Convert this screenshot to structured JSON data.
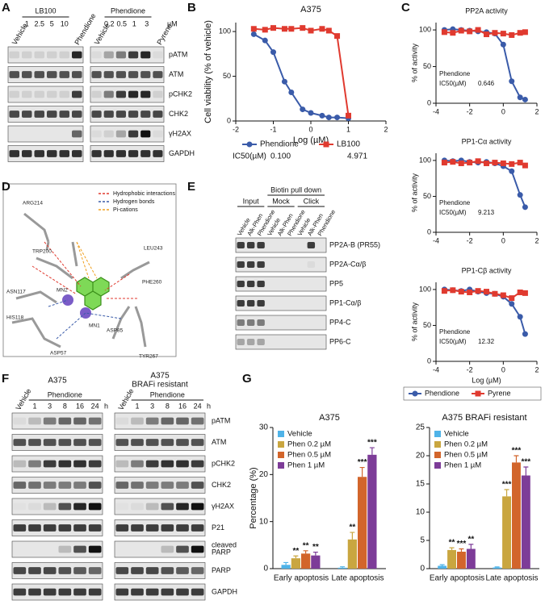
{
  "panel_labels": [
    "A",
    "B",
    "C",
    "D",
    "E",
    "F",
    "G"
  ],
  "panel_a": {
    "left_first": "Vehicle",
    "left_group": "LB100",
    "left_doses": [
      1,
      2.5,
      5,
      10
    ],
    "left_last": "Phendione",
    "right_first": "Vehicle",
    "right_group": "Phendione",
    "right_doses": [
      0.2,
      0.5,
      1,
      3
    ],
    "right_last": "Pyrene",
    "unit": "µM",
    "rows": [
      "pATM",
      "ATM",
      "pCHK2",
      "CHK2",
      "γH2AX",
      "GAPDH"
    ]
  },
  "panel_d": {
    "legend": [
      "Hydrophobic interactions",
      "Hydrogen bonds",
      "Pi-cations"
    ],
    "residues": [
      "ARG214",
      "TRP200",
      "LEU243",
      "ASN117",
      "MN2",
      "MN1",
      "PHE260",
      "HIS118",
      "ASP85",
      "TYR267",
      "ASP57"
    ]
  },
  "panel_e": {
    "input": "Input",
    "pulldown": "Biotin pull down",
    "mock": "Mock",
    "click": "Click",
    "lanes": [
      "Vehicle",
      "Alk-Phen",
      "Phendione",
      "Vehicle",
      "Alk-Phen",
      "Phendione",
      "Vehicle",
      "Alk-Phen",
      "Phendione"
    ],
    "rows": [
      "PP2A-B (PR55)",
      "PP2A-Cα/β",
      "PP5",
      "PP1-Cα/β",
      "PP4-C",
      "PP6-C"
    ]
  },
  "panel_f": {
    "left_title": "A375",
    "right_title": "A375",
    "right_subtitle": "BRAFi resistant",
    "vehicle": "Vehicle",
    "group": "Phendione",
    "times": [
      1,
      3,
      8,
      16,
      24
    ],
    "unit": "h",
    "rows": [
      "pATM",
      "ATM",
      "pCHK2",
      "CHK2",
      "γH2AX",
      "P21",
      "cleaved PARP",
      "PARP",
      "GAPDH"
    ]
  },
  "chart_data": [
    {
      "type": "line",
      "title": "A375",
      "xlabel": "Log (µM)",
      "ylabel": "Cell viability (% of vehicle)",
      "xlim": [
        -2,
        2
      ],
      "xticks": [
        -2,
        -1,
        0,
        1,
        2
      ],
      "ylim": [
        0,
        110
      ],
      "yticks": [
        0,
        50,
        100
      ],
      "x": [
        -1.52,
        -1.22,
        -1,
        -0.7,
        -0.52,
        -0.22,
        0,
        0.3,
        0.48,
        0.7,
        1
      ],
      "ic50_label": "IC50(µM)",
      "series": [
        {
          "name": "Phendione",
          "color": "#3a5ba9",
          "marker": "circle",
          "values": [
            97,
            90,
            77,
            44,
            32,
            13,
            9,
            6,
            4,
            4,
            3
          ],
          "ic50": "0.100"
        },
        {
          "name": "LB100",
          "color": "#e03a2f",
          "marker": "square",
          "values": [
            103,
            102,
            104,
            103,
            103,
            104,
            101,
            103,
            101,
            95,
            6
          ],
          "ic50": "4.971"
        }
      ]
    },
    {
      "type": "line",
      "title": "PP2A activity",
      "ylabel": "% of activity",
      "xlim": [
        -4,
        2
      ],
      "xticks": [
        -4,
        -2,
        0,
        2
      ],
      "ylim": [
        0,
        110
      ],
      "yticks": [
        0,
        50,
        100
      ],
      "x": [
        -3.5,
        -3,
        -2.5,
        -2,
        -1.5,
        -1,
        -0.5,
        0,
        0.5,
        1,
        1.3
      ],
      "annotation": [
        "Phendione",
        "IC50(µM)",
        "0.646"
      ],
      "series": [
        {
          "name": "Phendione",
          "color": "#3a5ba9",
          "marker": "circle",
          "values": [
            100,
            101,
            100,
            99,
            98,
            97,
            95,
            80,
            30,
            8,
            5
          ]
        },
        {
          "name": "Pyrene",
          "color": "#e03a2f",
          "marker": "square",
          "values": [
            97,
            96,
            99,
            98,
            100,
            94,
            96,
            95,
            93,
            96,
            97
          ]
        }
      ]
    },
    {
      "type": "line",
      "title": "PP1-Cα activity",
      "ylabel": "% of activity",
      "xlim": [
        -4,
        2
      ],
      "xticks": [
        -4,
        -2,
        0,
        2
      ],
      "ylim": [
        0,
        110
      ],
      "yticks": [
        0,
        50,
        100
      ],
      "x": [
        -3.5,
        -3,
        -2.5,
        -2,
        -1.5,
        -1,
        -0.5,
        0,
        0.5,
        1,
        1.3
      ],
      "annotation": [
        "Phendione",
        "IC50(µM)",
        "9.213"
      ],
      "series": [
        {
          "name": "Phendione",
          "color": "#3a5ba9",
          "marker": "circle",
          "values": [
            100,
            99,
            100,
            98,
            97,
            98,
            96,
            92,
            85,
            52,
            35
          ]
        },
        {
          "name": "Pyrene",
          "color": "#e03a2f",
          "marker": "square",
          "values": [
            97,
            98,
            96,
            97,
            99,
            96,
            97,
            96,
            95,
            97,
            93
          ]
        }
      ]
    },
    {
      "type": "line",
      "title": "PP1-Cβ activity",
      "ylabel": "% of activity",
      "xlabel": "Log (µM)",
      "legend": "bottom",
      "xlim": [
        -4,
        2
      ],
      "xticks": [
        -4,
        -2,
        0,
        2
      ],
      "ylim": [
        0,
        110
      ],
      "yticks": [
        0,
        50,
        100
      ],
      "x": [
        -3.5,
        -3,
        -2.5,
        -2,
        -1.5,
        -1,
        -0.5,
        0,
        0.5,
        1,
        1.3
      ],
      "annotation": [
        "Phendione",
        "IC50(µM)",
        "12.32"
      ],
      "series": [
        {
          "name": "Phendione",
          "color": "#3a5ba9",
          "marker": "circle",
          "values": [
            100,
            99,
            98,
            100,
            97,
            95,
            94,
            90,
            80,
            62,
            38
          ]
        },
        {
          "name": "Pyrene",
          "color": "#e03a2f",
          "marker": "square",
          "values": [
            98,
            99,
            97,
            96,
            98,
            97,
            94,
            92,
            88,
            96,
            95
          ]
        }
      ]
    },
    {
      "type": "bar",
      "title": "A375",
      "ylabel": "Percentage (%)",
      "legend": "top-left",
      "categories": [
        "Early apoptosis",
        "Late apoptosis"
      ],
      "ylim": [
        0,
        30
      ],
      "yticks": [
        0,
        10,
        20,
        30
      ],
      "series": [
        {
          "name": "Vehicle",
          "color": "#4fb3e8",
          "values": [
            0.8,
            0.2
          ],
          "errors": [
            0.5,
            0.2
          ],
          "stars": [
            null,
            null
          ]
        },
        {
          "name": "Phen 0.2 µM",
          "color": "#c9a640",
          "values": [
            2.2,
            6.2
          ],
          "errors": [
            0.5,
            1.5
          ],
          "stars": [
            "**",
            "**"
          ]
        },
        {
          "name": "Phen 0.5 µM",
          "color": "#d2652b",
          "values": [
            3.2,
            19.5
          ],
          "errors": [
            0.6,
            2
          ],
          "stars": [
            "**",
            "***"
          ]
        },
        {
          "name": "Phen 1 µM",
          "color": "#7d3c98",
          "values": [
            2.8,
            24.2
          ],
          "errors": [
            0.7,
            1.5
          ],
          "stars": [
            "**",
            "***"
          ]
        }
      ]
    },
    {
      "type": "bar",
      "title": "A375 BRAFi resistant",
      "legend": "top-left",
      "categories": [
        "Early apoptosis",
        "Late apoptosis"
      ],
      "ylim": [
        0,
        25
      ],
      "yticks": [
        0,
        5,
        10,
        15,
        20,
        25
      ],
      "series": [
        {
          "name": "Vehicle",
          "color": "#4fb3e8",
          "values": [
            0.5,
            0.2
          ],
          "errors": [
            0.2,
            0.1
          ],
          "stars": [
            null,
            null
          ]
        },
        {
          "name": "Phen 0.2 µM",
          "color": "#c9a640",
          "values": [
            3.3,
            12.8
          ],
          "errors": [
            0.4,
            1.2
          ],
          "stars": [
            "**",
            "***"
          ]
        },
        {
          "name": "Phen 0.5 µM",
          "color": "#d2652b",
          "values": [
            3.0,
            18.8
          ],
          "errors": [
            0.5,
            1.2
          ],
          "stars": [
            "***",
            "***"
          ]
        },
        {
          "name": "Phen 1 µM",
          "color": "#7d3c98",
          "values": [
            3.5,
            16.5
          ],
          "errors": [
            0.8,
            1.5
          ],
          "stars": [
            "**",
            "***"
          ]
        }
      ]
    }
  ]
}
